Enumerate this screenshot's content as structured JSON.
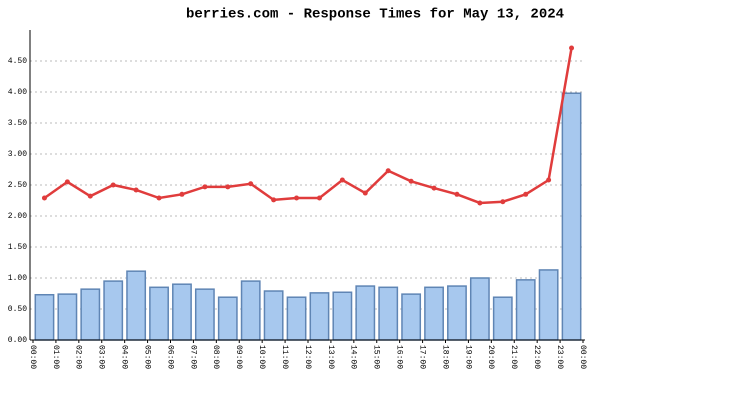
{
  "chart_data": {
    "type": "bar-line",
    "title": "berries.com - Response Times for May 13, 2024",
    "x_labels": [
      "00:00",
      "01:00",
      "02:00",
      "03:00",
      "04:00",
      "05:00",
      "06:00",
      "07:00",
      "08:00",
      "09:00",
      "10:00",
      "11:00",
      "12:00",
      "13:00",
      "14:00",
      "15:00",
      "16:00",
      "17:00",
      "18:00",
      "19:00",
      "20:00",
      "21:00",
      "22:00",
      "23:00",
      "00:00"
    ],
    "series": [
      {
        "kind": "bar",
        "color": "#a7c8ee",
        "edge": "#5f85b4",
        "values": [
          0.73,
          0.74,
          0.82,
          0.95,
          1.11,
          0.85,
          0.9,
          0.82,
          0.69,
          0.95,
          0.79,
          0.69,
          0.76,
          0.77,
          0.87,
          0.85,
          0.74,
          0.85,
          0.87,
          1.0,
          0.69,
          0.97,
          1.13,
          3.98
        ]
      },
      {
        "kind": "line",
        "color": "#e03c3c",
        "values": [
          2.29,
          2.55,
          2.32,
          2.5,
          2.42,
          2.29,
          2.35,
          2.47,
          2.47,
          2.52,
          2.26,
          2.29,
          2.29,
          2.58,
          2.37,
          2.73,
          2.56,
          2.45,
          2.35,
          2.21,
          2.23,
          2.35,
          2.58,
          4.71
        ]
      }
    ],
    "ylim": [
      0,
      5
    ],
    "yticks": [
      {
        "value": 0,
        "label": "0.00"
      },
      {
        "value": 0.5,
        "label": "0.50"
      },
      {
        "value": 1,
        "label": "1.00"
      },
      {
        "value": 1.5,
        "label": "1.50"
      },
      {
        "value": 2,
        "label": "2.00"
      },
      {
        "value": 2.5,
        "label": "2.50"
      },
      {
        "value": 3,
        "label": "3.00"
      },
      {
        "value": 3.5,
        "label": "3.50"
      },
      {
        "value": 4,
        "label": "4.00"
      },
      {
        "value": 4.5,
        "label": "4.50"
      }
    ],
    "grid": true
  }
}
